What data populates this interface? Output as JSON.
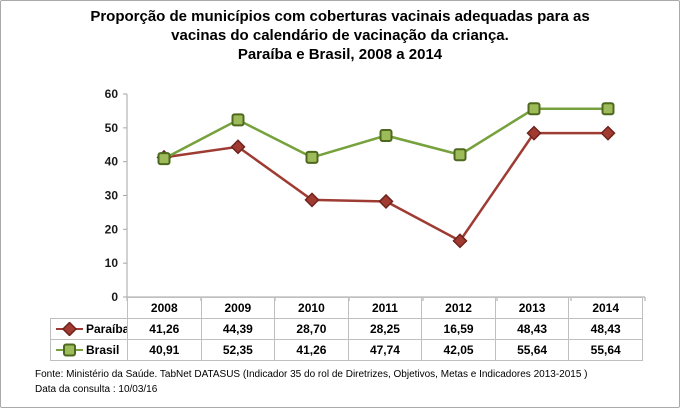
{
  "title_lines": [
    "Proporção de municípios com coberturas vacinais adequadas para as",
    "vacinas do calendário de vacinação da criança.",
    "Paraíba e Brasil, 2008 a 2014"
  ],
  "chart_data": {
    "type": "line",
    "categories": [
      "2008",
      "2009",
      "2010",
      "2011",
      "2012",
      "2013",
      "2014"
    ],
    "series": [
      {
        "name": "Paraíba",
        "values": [
          41.26,
          44.39,
          28.7,
          28.25,
          16.59,
          48.43,
          48.43
        ],
        "line_color": "#9e3b33",
        "marker": "diamond",
        "marker_fill": "#a13b31",
        "marker_stroke": "#6f241e"
      },
      {
        "name": "Brasil",
        "values": [
          40.91,
          52.35,
          41.26,
          47.74,
          42.05,
          55.64,
          55.64
        ],
        "line_color": "#76a13c",
        "marker": "square",
        "marker_fill": "#9dbb59",
        "marker_stroke": "#4e681f"
      }
    ],
    "title": "Proporção de municípios com coberturas vacinais adequadas para as vacinas do calendário de vacinação da criança. Paraíba e Brasil, 2008 a 2014",
    "xlabel": "",
    "ylabel": "",
    "ylim": [
      0,
      60
    ],
    "ytick_step": 10,
    "yticks": [
      "0",
      "10",
      "20",
      "30",
      "40",
      "50",
      "60"
    ],
    "grid": false,
    "legend_position": "table-left"
  },
  "table": {
    "columns": [
      "2008",
      "2009",
      "2010",
      "2011",
      "2012",
      "2013",
      "2014"
    ],
    "rows": [
      {
        "label": "Paraíba",
        "values": [
          "41,26",
          "44,39",
          "28,70",
          "28,25",
          "16,59",
          "48,43",
          "48,43"
        ]
      },
      {
        "label": "Brasil",
        "values": [
          "40,91",
          "52,35",
          "41,26",
          "47,74",
          "42,05",
          "55,64",
          "55,64"
        ]
      }
    ]
  },
  "footer": {
    "line1": "Fonte: Ministério da Saúde. TabNet DATASUS (Indicador 35 do rol de Diretrizes, Objetivos, Metas e Indicadores 2013-2015 )",
    "line2": "Data da consulta : 10/03/16"
  }
}
